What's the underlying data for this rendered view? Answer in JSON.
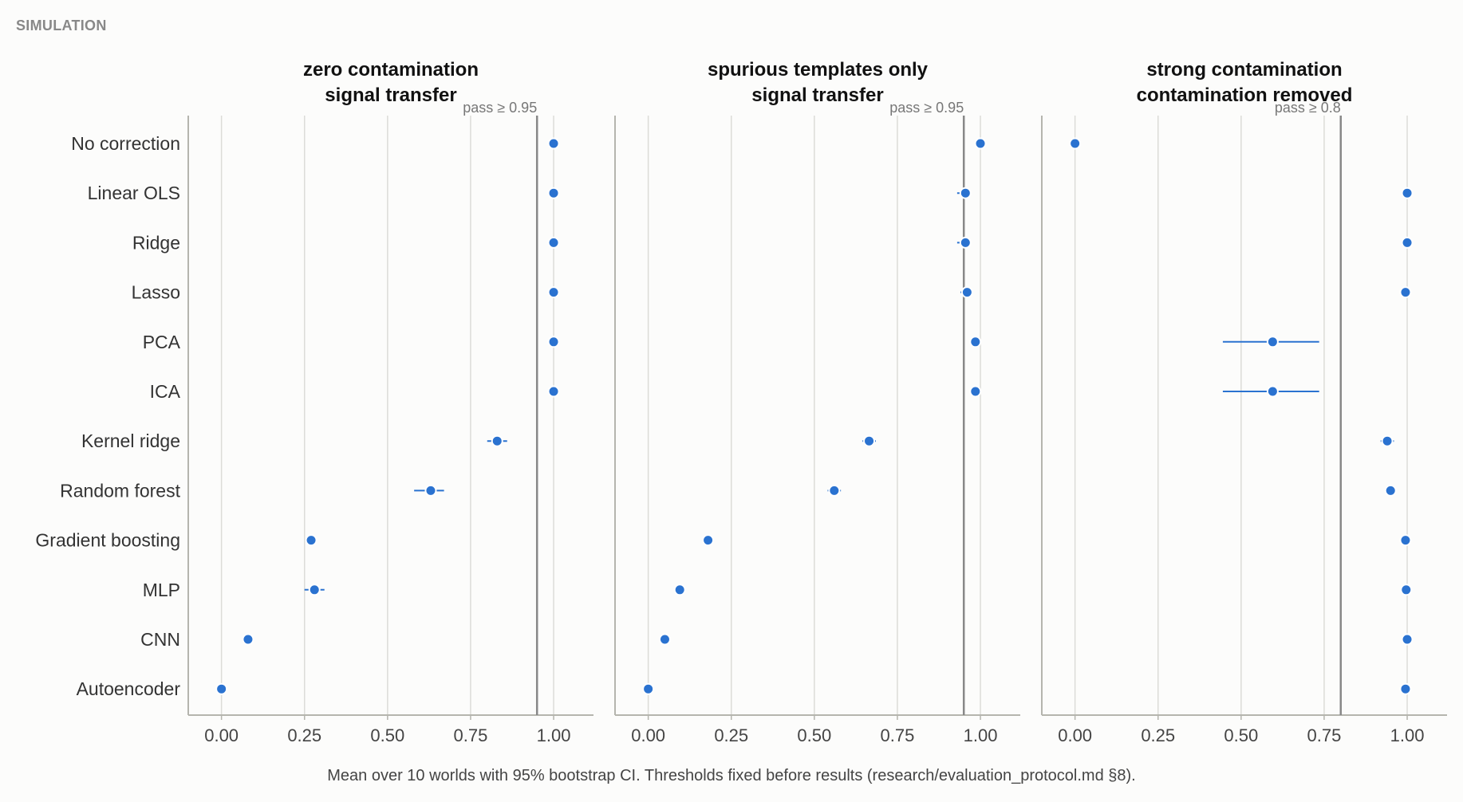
{
  "section_label": "SIMULATION",
  "caption": "Mean over 10 worlds with 95% bootstrap CI. Thresholds fixed before results (research/evaluation_protocol.md §8).",
  "colors": {
    "point": "#2a72d0",
    "threshold": "#888888",
    "grid": "#dcdcd8",
    "axis": "#b5b5ae"
  },
  "chart_data": {
    "type": "scatter",
    "categories": [
      "No correction",
      "Linear OLS",
      "Ridge",
      "Lasso",
      "PCA",
      "ICA",
      "Kernel ridge",
      "Random forest",
      "Gradient boosting",
      "MLP",
      "CNN",
      "Autoencoder"
    ],
    "xlim": [
      -0.1,
      1.12
    ],
    "x_ticks": [
      "0.00",
      "0.25",
      "0.50",
      "0.75",
      "1.00"
    ],
    "x_tick_values": [
      0,
      0.25,
      0.5,
      0.75,
      1.0
    ],
    "grid": true,
    "panels": [
      {
        "title_line1": "zero contamination",
        "title_line2": "signal transfer",
        "threshold": 0.95,
        "threshold_label": "pass ≥ 0.95",
        "values": [
          1.0,
          1.0,
          1.0,
          1.0,
          1.0,
          1.0,
          0.83,
          0.63,
          0.27,
          0.28,
          0.08,
          0.0
        ],
        "ci_low": [
          1.0,
          1.0,
          1.0,
          1.0,
          1.0,
          1.0,
          0.8,
          0.58,
          0.27,
          0.25,
          0.08,
          0.0
        ],
        "ci_high": [
          1.0,
          1.0,
          1.0,
          1.0,
          1.0,
          1.0,
          0.86,
          0.67,
          0.27,
          0.31,
          0.08,
          0.0
        ]
      },
      {
        "title_line1": "spurious templates only",
        "title_line2": "signal transfer",
        "threshold": 0.95,
        "threshold_label": "pass ≥ 0.95",
        "values": [
          1.0,
          0.955,
          0.955,
          0.96,
          0.985,
          0.985,
          0.665,
          0.56,
          0.18,
          0.095,
          0.05,
          0.0
        ],
        "ci_low": [
          1.0,
          0.93,
          0.93,
          0.94,
          0.985,
          0.985,
          0.645,
          0.54,
          0.18,
          0.095,
          0.05,
          0.0
        ],
        "ci_high": [
          1.0,
          0.97,
          0.97,
          0.975,
          0.985,
          0.985,
          0.685,
          0.58,
          0.18,
          0.095,
          0.05,
          0.0
        ]
      },
      {
        "title_line1": "strong contamination",
        "title_line2": "contamination removed",
        "threshold": 0.8,
        "threshold_label": "pass ≥ 0.8",
        "values": [
          0.0,
          1.0,
          1.0,
          0.995,
          0.595,
          0.595,
          0.94,
          0.95,
          0.995,
          0.997,
          1.0,
          0.995
        ],
        "ci_low": [
          0.0,
          1.0,
          1.0,
          0.995,
          0.445,
          0.445,
          0.92,
          0.95,
          0.995,
          0.997,
          1.0,
          0.995
        ],
        "ci_high": [
          0.0,
          1.0,
          1.0,
          0.995,
          0.735,
          0.735,
          0.96,
          0.95,
          0.995,
          0.997,
          1.0,
          0.995
        ]
      }
    ]
  }
}
